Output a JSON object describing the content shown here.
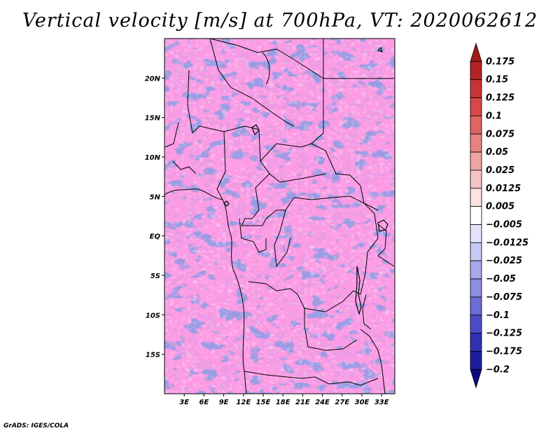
{
  "title": "Vertical velocity [m/s] at 700hPa, VT: 2020062612",
  "credit": "GrADS: IGES/COLA",
  "map": {
    "variable": "Vertical velocity",
    "units": "m/s",
    "level": "700hPa",
    "valid_time": "2020062612",
    "lon_range": [
      0,
      35
    ],
    "lat_range": [
      -20,
      25
    ],
    "x_ticks": [
      "3E",
      "6E",
      "9E",
      "12E",
      "15E",
      "18E",
      "21E",
      "24E",
      "27E",
      "30E",
      "33E"
    ],
    "x_tick_values": [
      3,
      6,
      9,
      12,
      15,
      18,
      21,
      24,
      27,
      30,
      33
    ],
    "y_ticks": [
      "20N",
      "15N",
      "10N",
      "5N",
      "EQ",
      "5S",
      "10S",
      "15S"
    ],
    "y_tick_values": [
      20,
      15,
      10,
      5,
      0,
      -5,
      -10,
      -15
    ]
  },
  "colorbar": {
    "labels": [
      "0.175",
      "0.15",
      "0.125",
      "0.1",
      "0.075",
      "0.05",
      "0.025",
      "0.0125",
      "0.005",
      "−0.005",
      "−0.0125",
      "−0.025",
      "−0.05",
      "−0.075",
      "−0.1",
      "−0.125",
      "−0.175",
      "−0.2"
    ],
    "colors": [
      "#a01a1a",
      "#b42424",
      "#c83434",
      "#d84848",
      "#e06464",
      "#e88282",
      "#f0a4a4",
      "#f6c4c4",
      "#fbe2e2",
      "#ffffff",
      "#e2e2fb",
      "#c8c8f4",
      "#a8a8ec",
      "#8c8ce2",
      "#6c6cd6",
      "#4c4cc8",
      "#3030b4",
      "#1c1ca0",
      "#0c0c80"
    ]
  }
}
